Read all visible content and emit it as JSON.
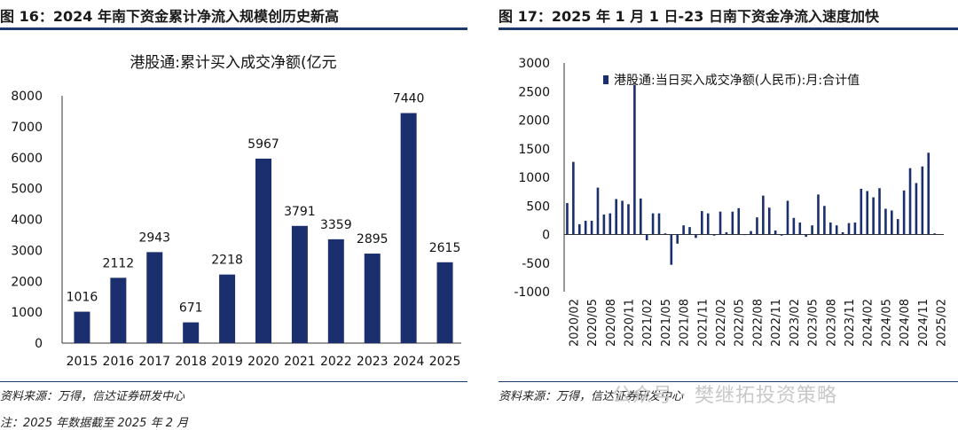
{
  "left": {
    "figure_title": "图 16：2024 年南下资金累计净流入规模创历史新高",
    "source": "资料来源：万得，信达证券研发中心",
    "note": "注：2025 年数据截至 2025 年 2 月",
    "chart_data": {
      "type": "bar",
      "title": "港股通:累计买入成交净额(亿元",
      "categories": [
        "2015",
        "2016",
        "2017",
        "2018",
        "2019",
        "2020",
        "2021",
        "2022",
        "2023",
        "2024",
        "2025"
      ],
      "values": [
        1016,
        2112,
        2943,
        671,
        2218,
        5967,
        3791,
        3359,
        2895,
        7440,
        2615
      ],
      "data_labels": [
        "1016",
        "2112",
        "2943",
        "671",
        "2218",
        "5967",
        "3791",
        "3359",
        "2895",
        "7440",
        "2615"
      ],
      "ylim": [
        0,
        8000
      ],
      "yticks": [
        "0",
        "1000",
        "2000",
        "3000",
        "4000",
        "5000",
        "6000",
        "7000",
        "8000"
      ],
      "grid": false,
      "color": "#1b2f6e"
    }
  },
  "right": {
    "figure_title": "图 17：2025 年 1 月 1 日-23 日南下资金净流入速度加快",
    "source": "资料来源：万得，信达证券研发中心",
    "watermark": "公众号 · 樊继拓投资策略",
    "chart_data": {
      "type": "bar",
      "legend": "港股通:当日买入成交净额(人民币):月:合计值",
      "legend_position": "top",
      "ylim": [
        -1000,
        3000
      ],
      "yticks": [
        "-1000",
        "-500",
        "0",
        "500",
        "1000",
        "1500",
        "2000",
        "2500",
        "3000"
      ],
      "xticks": [
        "2020/02",
        "2020/05",
        "2020/08",
        "2020/11",
        "2021/02",
        "2021/05",
        "2021/08",
        "2021/11",
        "2022/02",
        "2022/05",
        "2022/08",
        "2022/11",
        "2023/02",
        "2023/05",
        "2023/08",
        "2023/11",
        "2024/02",
        "2024/05",
        "2024/08",
        "2024/11",
        "2025/02"
      ],
      "x": [
        "2020/01",
        "2020/02",
        "2020/03",
        "2020/04",
        "2020/05",
        "2020/06",
        "2020/07",
        "2020/08",
        "2020/09",
        "2020/10",
        "2020/11",
        "2020/12",
        "2021/01",
        "2021/02",
        "2021/03",
        "2021/04",
        "2021/05",
        "2021/06",
        "2021/07",
        "2021/08",
        "2021/09",
        "2021/10",
        "2021/11",
        "2021/12",
        "2022/01",
        "2022/02",
        "2022/03",
        "2022/04",
        "2022/05",
        "2022/06",
        "2022/07",
        "2022/08",
        "2022/09",
        "2022/10",
        "2022/11",
        "2022/12",
        "2023/01",
        "2023/02",
        "2023/03",
        "2023/04",
        "2023/05",
        "2023/06",
        "2023/07",
        "2023/08",
        "2023/09",
        "2023/10",
        "2023/11",
        "2023/12",
        "2024/01",
        "2024/02",
        "2024/03",
        "2024/04",
        "2024/05",
        "2024/06",
        "2024/07",
        "2024/08",
        "2024/09",
        "2024/10",
        "2024/11",
        "2024/12",
        "2025/01",
        "2025/02"
      ],
      "values": [
        550,
        1270,
        180,
        240,
        240,
        820,
        350,
        370,
        620,
        590,
        530,
        2620,
        630,
        -100,
        370,
        370,
        20,
        -530,
        -160,
        160,
        130,
        -60,
        410,
        370,
        -20,
        400,
        40,
        400,
        460,
        -10,
        60,
        300,
        680,
        470,
        70,
        -20,
        590,
        290,
        210,
        -40,
        160,
        700,
        500,
        210,
        160,
        40,
        200,
        210,
        800,
        760,
        650,
        810,
        450,
        420,
        270,
        770,
        1160,
        900,
        1190,
        1430,
        20,
        0
      ],
      "grid": false,
      "color": "#1b2f6e"
    }
  }
}
